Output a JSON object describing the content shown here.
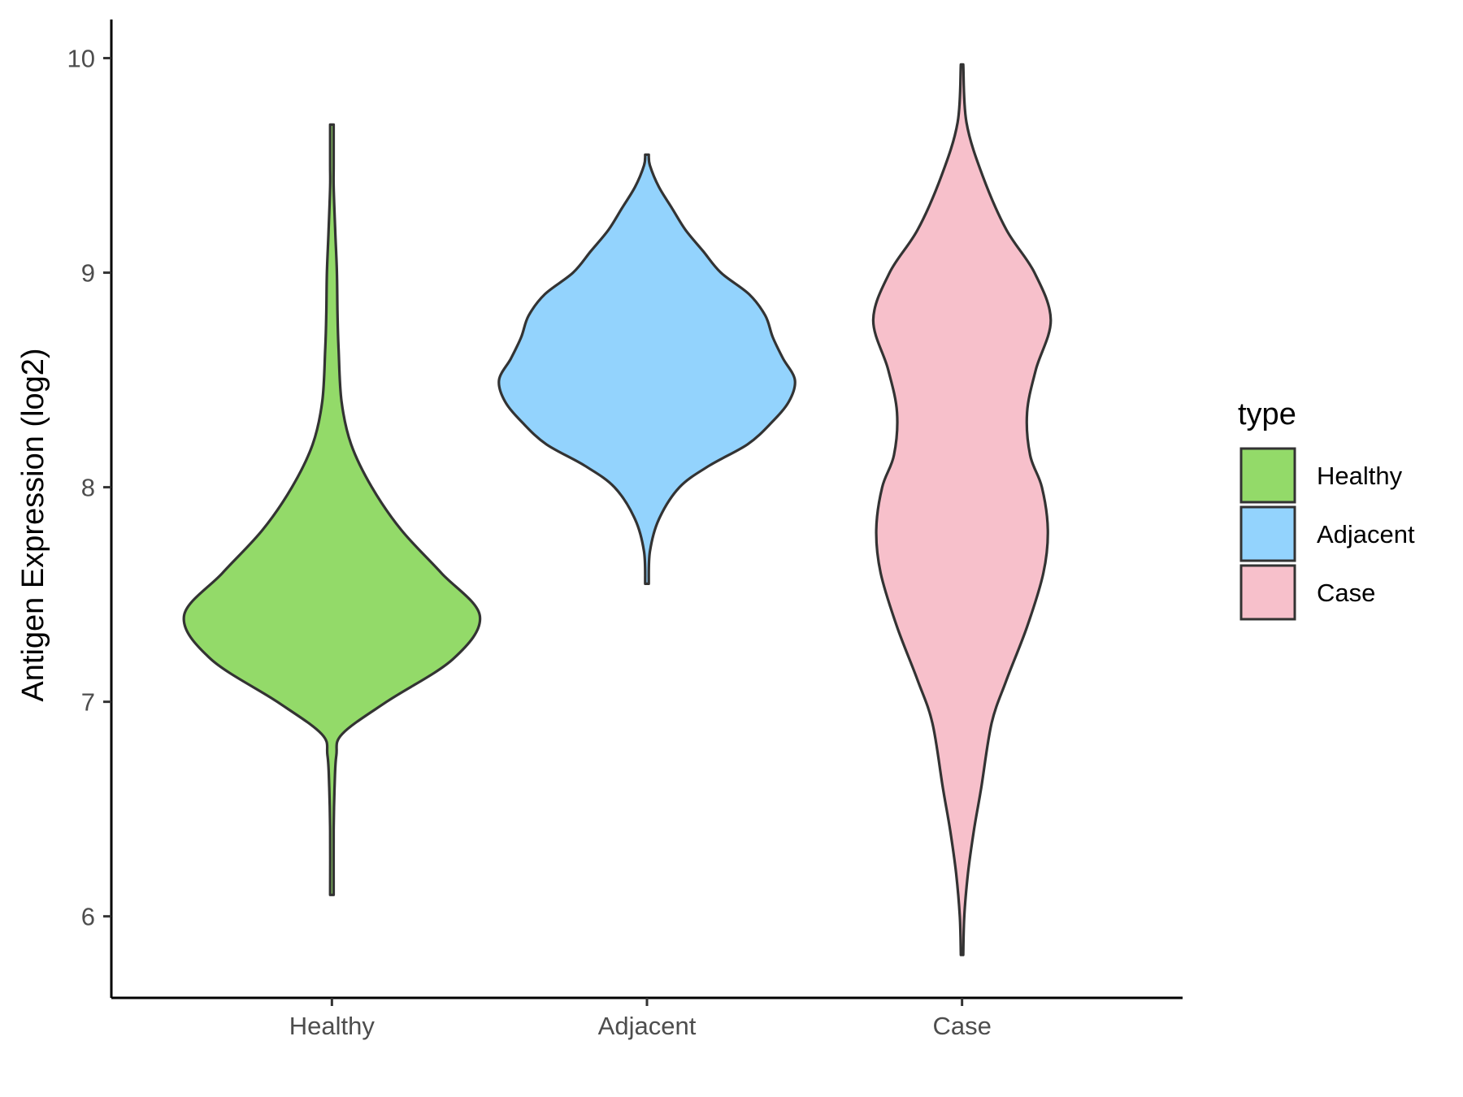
{
  "chart_data": {
    "type": "violin",
    "ylabel": "Antigen Expression (log2)",
    "xlabel": "",
    "categories": [
      "Healthy",
      "Adjacent",
      "Case"
    ],
    "ylim": [
      5.62,
      10.18
    ],
    "yticks": [
      6,
      7,
      8,
      9,
      10
    ],
    "grid": false,
    "legend": {
      "title": "type",
      "position": "right",
      "entries": [
        {
          "label": "Healthy",
          "color": "#93da69"
        },
        {
          "label": "Adjacent",
          "color": "#93d3fd"
        },
        {
          "label": "Case",
          "color": "#f7c0cb"
        }
      ]
    },
    "series": [
      {
        "category": "Healthy",
        "color": "#93da69",
        "profile": [
          [
            6.1,
            0.012
          ],
          [
            6.4,
            0.012
          ],
          [
            6.6,
            0.018
          ],
          [
            6.75,
            0.03
          ],
          [
            6.85,
            0.07
          ],
          [
            7.0,
            0.37
          ],
          [
            7.2,
            0.82
          ],
          [
            7.4,
            1.0
          ],
          [
            7.6,
            0.74
          ],
          [
            7.8,
            0.47
          ],
          [
            8.0,
            0.27
          ],
          [
            8.2,
            0.13
          ],
          [
            8.4,
            0.065
          ],
          [
            8.65,
            0.045
          ],
          [
            8.8,
            0.038
          ],
          [
            9.0,
            0.034
          ],
          [
            9.2,
            0.022
          ],
          [
            9.4,
            0.012
          ],
          [
            9.5,
            0.012
          ],
          [
            9.69,
            0.012
          ]
        ]
      },
      {
        "category": "Adjacent",
        "color": "#93d3fd",
        "profile": [
          [
            7.55,
            0.012
          ],
          [
            7.7,
            0.02
          ],
          [
            7.85,
            0.08
          ],
          [
            8.0,
            0.22
          ],
          [
            8.1,
            0.42
          ],
          [
            8.2,
            0.68
          ],
          [
            8.3,
            0.84
          ],
          [
            8.4,
            0.96
          ],
          [
            8.5,
            1.0
          ],
          [
            8.6,
            0.92
          ],
          [
            8.7,
            0.85
          ],
          [
            8.8,
            0.8
          ],
          [
            8.9,
            0.69
          ],
          [
            9.0,
            0.5
          ],
          [
            9.1,
            0.38
          ],
          [
            9.2,
            0.26
          ],
          [
            9.3,
            0.17
          ],
          [
            9.4,
            0.08
          ],
          [
            9.5,
            0.02
          ],
          [
            9.55,
            0.012
          ]
        ]
      },
      {
        "category": "Case",
        "color": "#f7c0cb",
        "profile": [
          [
            5.82,
            0.008
          ],
          [
            6.0,
            0.015
          ],
          [
            6.2,
            0.04
          ],
          [
            6.4,
            0.08
          ],
          [
            6.6,
            0.13
          ],
          [
            6.9,
            0.2
          ],
          [
            7.1,
            0.3
          ],
          [
            7.35,
            0.44
          ],
          [
            7.6,
            0.55
          ],
          [
            7.8,
            0.58
          ],
          [
            8.0,
            0.54
          ],
          [
            8.15,
            0.46
          ],
          [
            8.35,
            0.44
          ],
          [
            8.55,
            0.5
          ],
          [
            8.78,
            0.6
          ],
          [
            9.0,
            0.49
          ],
          [
            9.2,
            0.3
          ],
          [
            9.45,
            0.14
          ],
          [
            9.7,
            0.03
          ],
          [
            9.97,
            0.008
          ]
        ]
      }
    ]
  }
}
